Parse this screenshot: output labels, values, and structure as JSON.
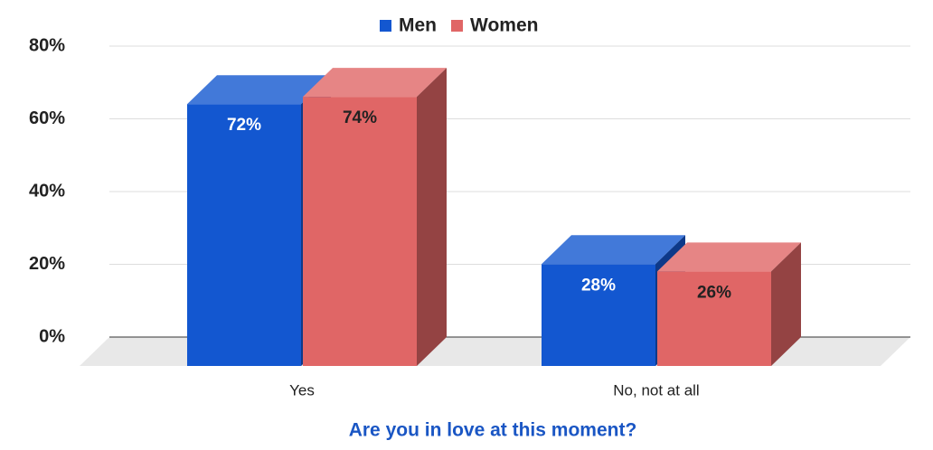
{
  "chart_data": {
    "type": "bar3d",
    "x_label": "Are you in love at this moment?",
    "categories": [
      "Yes",
      "No, not at all"
    ],
    "series": [
      {
        "name": "Men",
        "color": "#1357d0",
        "values": [
          72,
          28
        ],
        "value_labels": [
          "72%",
          "28%"
        ]
      },
      {
        "name": "Women",
        "color": "#e06666",
        "values": [
          74,
          26
        ],
        "value_labels": [
          "74%",
          "26%"
        ]
      }
    ],
    "ylim": [
      0,
      80
    ],
    "yticks": [
      {
        "value": 0,
        "label": "0%"
      },
      {
        "value": 20,
        "label": "20%"
      },
      {
        "value": 40,
        "label": "40%"
      },
      {
        "value": 60,
        "label": "60%"
      },
      {
        "value": 80,
        "label": "80%"
      }
    ],
    "grid": true,
    "legend": "top"
  }
}
